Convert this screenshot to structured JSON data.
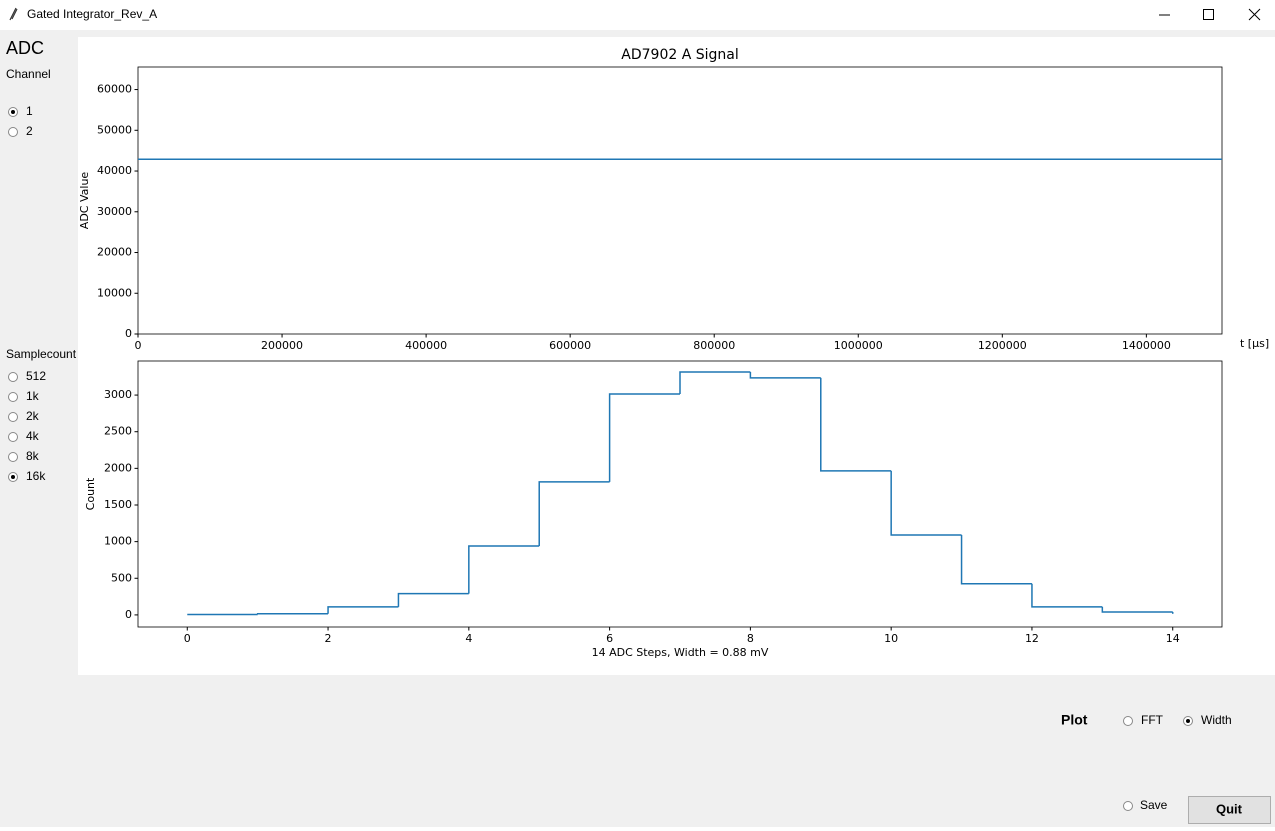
{
  "window": {
    "title": "Gated Integrator_Rev_A"
  },
  "sidebar": {
    "heading": "ADC",
    "channel": {
      "label": "Channel",
      "options": [
        "1",
        "2"
      ],
      "selected": 0
    },
    "samplecount": {
      "label": "Samplecount",
      "options": [
        "512",
        "1k",
        "2k",
        "4k",
        "8k",
        "16k"
      ],
      "selected": 5
    }
  },
  "chart_data": [
    {
      "type": "line",
      "title": "AD7902 A Signal",
      "y_label": "ADC Value",
      "x_label": "t [μs]",
      "series": [
        {
          "color": "#1f77b4",
          "x": [
            0,
            1505000
          ],
          "values": [
            42900,
            42900
          ]
        }
      ],
      "xlim": [
        0,
        1505000
      ],
      "xticks": [
        0,
        200000,
        400000,
        600000,
        800000,
        1000000,
        1200000,
        1400000
      ],
      "ylim": [
        0,
        65535
      ],
      "yticks": [
        0,
        10000,
        20000,
        30000,
        40000,
        50000,
        60000
      ],
      "grid": false
    },
    {
      "type": "step",
      "y_label": "Count",
      "x_label": "14 ADC Steps, Width = 0.88 mV",
      "series": [
        {
          "color": "#1f77b4",
          "x": [
            0,
            1,
            2,
            3,
            4,
            5,
            6,
            7,
            8,
            9,
            10,
            11,
            12,
            13,
            14
          ],
          "values": [
            5,
            15,
            110,
            290,
            940,
            1815,
            3015,
            3315,
            3235,
            1965,
            1090,
            425,
            110,
            40,
            15
          ]
        }
      ],
      "xlim": [
        -0.7,
        14.7
      ],
      "xticks": [
        0,
        2,
        4,
        6,
        8,
        10,
        12,
        14
      ],
      "ylim": [
        -165,
        3465
      ],
      "yticks": [
        0,
        500,
        1000,
        1500,
        2000,
        2500,
        3000
      ],
      "grid": false
    }
  ],
  "controls": {
    "plot": {
      "label": "Plot",
      "options": [
        "FFT",
        "Width"
      ],
      "selected": 1
    },
    "save": "Save",
    "quit": "Quit"
  }
}
